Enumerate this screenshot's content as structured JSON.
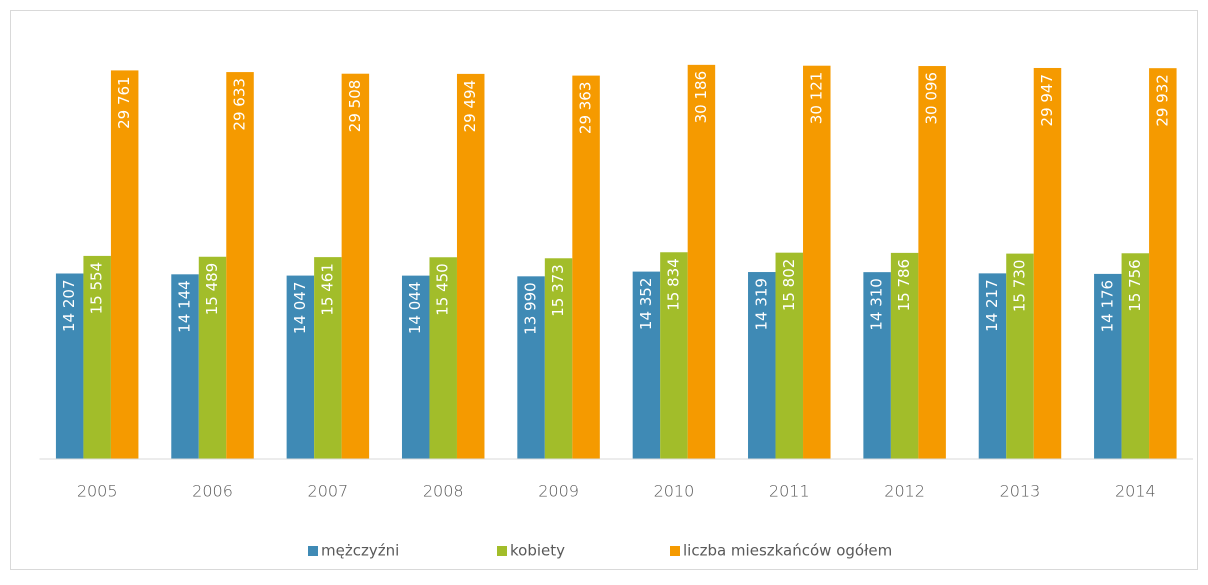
{
  "chart_data": {
    "type": "bar",
    "categories": [
      "2005",
      "2006",
      "2007",
      "2008",
      "2009",
      "2010",
      "2011",
      "2012",
      "2013",
      "2014"
    ],
    "series": [
      {
        "name": "mężczyźni",
        "color": "#3f8ab5",
        "values": [
          14207,
          14144,
          14047,
          14044,
          13990,
          14352,
          14319,
          14310,
          14217,
          14176
        ],
        "value_labels": [
          "14 207",
          "14 144",
          "14 047",
          "14 044",
          "13 990",
          "14 352",
          "14 319",
          "14 310",
          "14 217",
          "14 176"
        ]
      },
      {
        "name": "kobiety",
        "color": "#a2bd2a",
        "values": [
          15554,
          15489,
          15461,
          15450,
          15373,
          15834,
          15802,
          15786,
          15730,
          15756
        ],
        "value_labels": [
          "15 554",
          "15 489",
          "15 461",
          "15 450",
          "15 373",
          "15 834",
          "15 802",
          "15 786",
          "15 730",
          "15 756"
        ]
      },
      {
        "name": "liczba mieszkańców ogółem",
        "color": "#f59a00",
        "values": [
          29761,
          29633,
          29508,
          29494,
          29363,
          30186,
          30121,
          30096,
          29947,
          29932
        ],
        "value_labels": [
          "29 761",
          "29 633",
          "29 508",
          "29 494",
          "29 363",
          "30 186",
          "30 121",
          "30 096",
          "29 947",
          "29 932"
        ]
      }
    ],
    "ylim": [
      0,
      35000
    ],
    "legend": "bottom"
  }
}
